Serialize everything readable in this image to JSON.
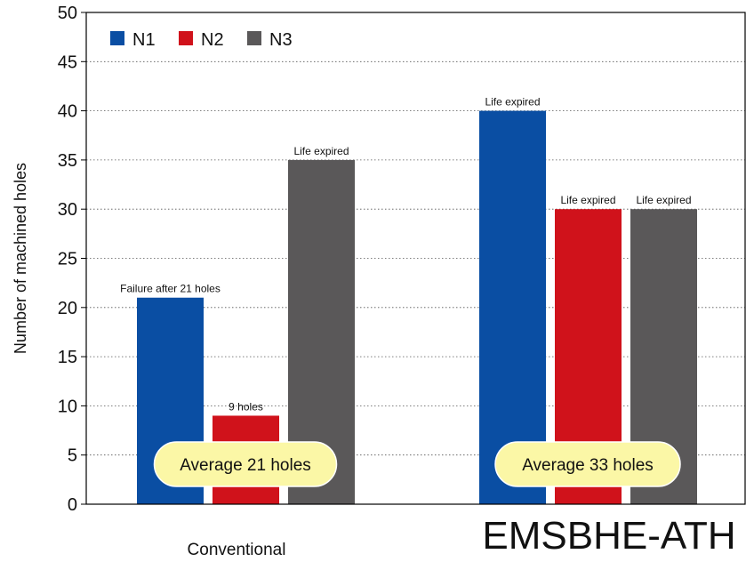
{
  "chart_data": {
    "type": "bar",
    "title": "",
    "xlabel": "",
    "ylabel": "Number of machined holes",
    "ylim": [
      0,
      50
    ],
    "yticks": [
      0,
      5,
      10,
      15,
      20,
      25,
      30,
      35,
      40,
      45,
      50
    ],
    "grid": true,
    "grid_style": "dotted horizontal",
    "legend_position": "top-left",
    "categories": [
      "Conventional",
      "EMSBHE-ATH"
    ],
    "series": [
      {
        "name": "N1",
        "color": "#0a4ea3",
        "values": [
          21,
          40
        ]
      },
      {
        "name": "N2",
        "color": "#d0121b",
        "values": [
          9,
          30
        ]
      },
      {
        "name": "N3",
        "color": "#5a5859",
        "values": [
          35,
          30
        ]
      }
    ],
    "bar_labels": [
      [
        "Failure after 21 holes",
        "9 holes",
        "Life expired"
      ],
      [
        "Life expired",
        "Life expired",
        "Life expired"
      ]
    ],
    "group_notes": [
      "Average 21 holes",
      "Average 33 holes"
    ],
    "note_color": "#fbf7a6"
  }
}
